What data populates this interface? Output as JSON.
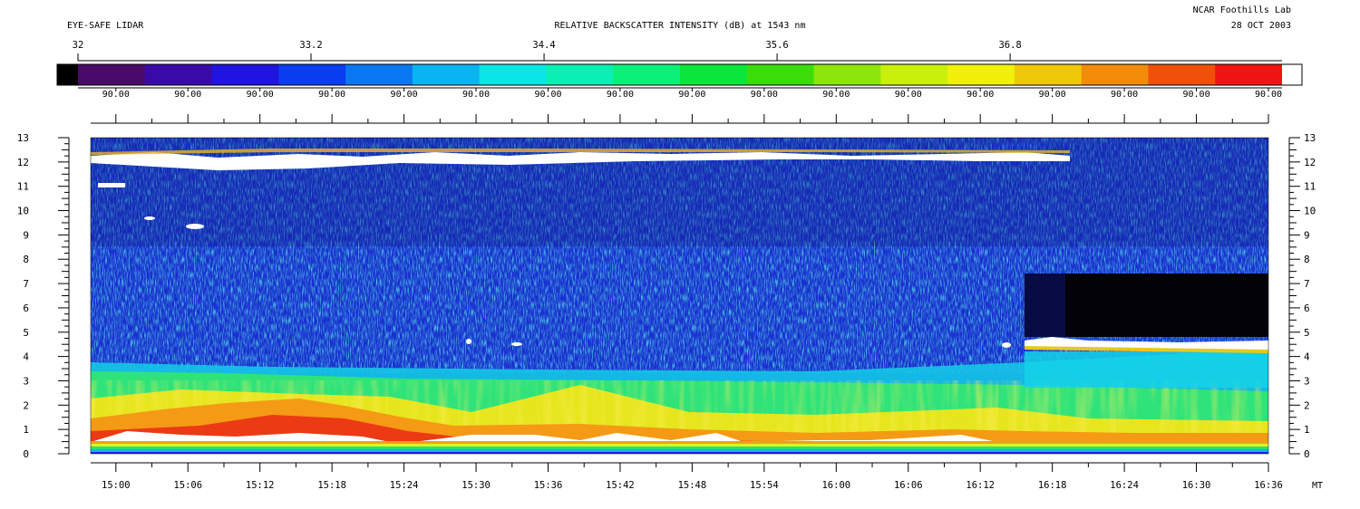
{
  "header": {
    "instrument": "EYE-SAFE LIDAR",
    "title": "RELATIVE BACKSCATTER INTENSITY (dB) at 1543 nm",
    "lab": "NCAR Foothills Lab",
    "date": "28 OCT 2003"
  },
  "colorbar": {
    "min": 32,
    "max": 38.2,
    "ticks": [
      "32",
      "33.2",
      "34.4",
      "35.6",
      "36.8"
    ],
    "tick_values": [
      32,
      33.2,
      34.4,
      35.6,
      36.8
    ],
    "bottom_labels": [
      "90.00",
      "90.00",
      "90.00",
      "90.00",
      "90.00",
      "90.00",
      "90.00",
      "90.00",
      "90.00",
      "90.00",
      "90.00",
      "90.00",
      "90.00",
      "90.00",
      "90.00",
      "90.00",
      "90.00"
    ],
    "colors": [
      "#4a0a6a",
      "#3a0aa8",
      "#1f14e0",
      "#0a3cf0",
      "#0a78f0",
      "#0ab4f0",
      "#0ae6e6",
      "#0af0b4",
      "#0af078",
      "#0ae63c",
      "#3cdc0a",
      "#8ce60a",
      "#c8f00a",
      "#f0f00a",
      "#f0c80a",
      "#f08c0a",
      "#f0500a",
      "#f01414"
    ],
    "under_color": "#000000",
    "over_color": "#ffffff"
  },
  "chart_data": {
    "type": "heatmap",
    "title": "RELATIVE BACKSCATTER INTENSITY (dB) at 1543 nm",
    "xlabel": "MT",
    "ylabel": "",
    "x_ticks": [
      "15:00",
      "15:06",
      "15:12",
      "15:18",
      "15:24",
      "15:30",
      "15:36",
      "15:42",
      "15:48",
      "15:54",
      "16:00",
      "16:06",
      "16:12",
      "16:18",
      "16:24",
      "16:30",
      "16:36"
    ],
    "x_range_minutes": [
      897.9,
      996.0
    ],
    "y_ticks": [
      "0",
      "1",
      "2",
      "3",
      "4",
      "5",
      "6",
      "7",
      "8",
      "9",
      "10",
      "11",
      "12",
      "13"
    ],
    "ylim": [
      0,
      13
    ],
    "layers": [
      {
        "feature": "surface layer",
        "y_range": [
          0,
          0.25
        ]
      },
      {
        "feature": "boundary layer aerosol",
        "y_range": [
          0.5,
          3.5
        ]
      },
      {
        "feature": "free troposphere background",
        "y_range": [
          3.5,
          13
        ]
      },
      {
        "feature": "cloud layer",
        "y_range": [
          4.0,
          4.7
        ],
        "x_range": [
          "16:17",
          "16:36"
        ]
      },
      {
        "feature": "attenuated signal above cloud",
        "y_range": [
          4.7,
          7.5
        ],
        "x_range": [
          "16:17",
          "16:36"
        ]
      },
      {
        "feature": "cirrus",
        "y_range": [
          11.5,
          12.4
        ],
        "x_range": [
          "14:58",
          "16:20"
        ]
      },
      {
        "feature": "cirrus",
        "y_range": [
          10.8,
          11.0
        ],
        "x_range": [
          "14:58",
          "15:06"
        ]
      }
    ]
  }
}
